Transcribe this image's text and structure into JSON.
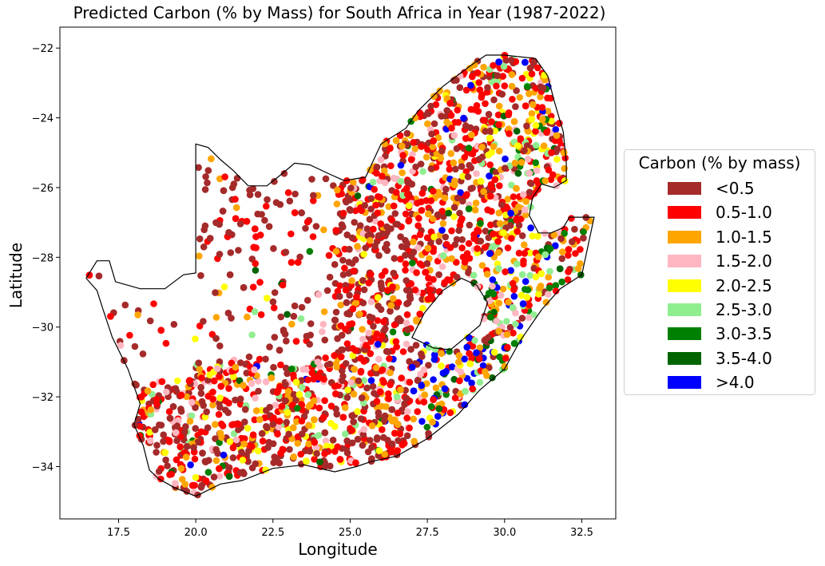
{
  "chart_data": {
    "type": "scatter",
    "title": "Predicted Carbon (% by Mass) for South Africa in Year (1987-2022)",
    "xlabel": "Longitude",
    "ylabel": "Latitude",
    "xlim": [
      15.6,
      33.6
    ],
    "ylim": [
      -35.5,
      -21.4
    ],
    "xticks": [
      17.5,
      20.0,
      22.5,
      25.0,
      27.5,
      30.0,
      32.5
    ],
    "xtick_labels": [
      "17.5",
      "20.0",
      "22.5",
      "25.0",
      "27.5",
      "30.0",
      "32.5"
    ],
    "yticks": [
      -22,
      -24,
      -26,
      -28,
      -30,
      -32,
      -34
    ],
    "ytick_labels": [
      "−22",
      "−24",
      "−26",
      "−28",
      "−30",
      "−32",
      "−34"
    ],
    "grid": false,
    "legend_position": "right",
    "legend": {
      "title": "Carbon (% by mass)",
      "entries": [
        {
          "label": "<0.5",
          "color": "#a52a2a"
        },
        {
          "label": "0.5-1.0",
          "color": "#ff0000"
        },
        {
          "label": "1.0-1.5",
          "color": "#ffa500"
        },
        {
          "label": "1.5-2.0",
          "color": "#ffb6c1"
        },
        {
          "label": "2.0-2.5",
          "color": "#ffff00"
        },
        {
          "label": "2.5-3.0",
          "color": "#90ee90"
        },
        {
          "label": "3.0-3.5",
          "color": "#008000"
        },
        {
          "label": "3.5-4.0",
          "color": "#006400"
        },
        {
          "label": ">4.0",
          "color": "#0000ff"
        }
      ]
    },
    "boundary_south_africa": [
      [
        16.45,
        -28.6
      ],
      [
        16.8,
        -28.1
      ],
      [
        17.2,
        -28.1
      ],
      [
        17.4,
        -28.7
      ],
      [
        18.2,
        -28.9
      ],
      [
        19.0,
        -28.9
      ],
      [
        19.6,
        -28.5
      ],
      [
        20.0,
        -28.45
      ],
      [
        20.0,
        -24.75
      ],
      [
        20.4,
        -24.85
      ],
      [
        20.8,
        -25.2
      ],
      [
        21.2,
        -25.5
      ],
      [
        21.7,
        -25.95
      ],
      [
        22.3,
        -25.95
      ],
      [
        22.8,
        -25.6
      ],
      [
        23.2,
        -25.3
      ],
      [
        23.7,
        -25.35
      ],
      [
        24.3,
        -25.6
      ],
      [
        24.8,
        -25.8
      ],
      [
        25.5,
        -25.7
      ],
      [
        26.0,
        -24.75
      ],
      [
        26.8,
        -24.3
      ],
      [
        27.2,
        -23.8
      ],
      [
        28.0,
        -23.1
      ],
      [
        28.9,
        -22.5
      ],
      [
        29.4,
        -22.2
      ],
      [
        30.0,
        -22.2
      ],
      [
        31.0,
        -22.3
      ],
      [
        31.4,
        -22.8
      ],
      [
        31.6,
        -23.5
      ],
      [
        31.9,
        -24.4
      ],
      [
        32.0,
        -25.3
      ],
      [
        32.0,
        -25.8
      ],
      [
        31.6,
        -26.0
      ],
      [
        31.2,
        -25.9
      ],
      [
        30.9,
        -26.3
      ],
      [
        30.8,
        -26.8
      ],
      [
        31.1,
        -27.3
      ],
      [
        31.5,
        -27.3
      ],
      [
        31.9,
        -27.15
      ],
      [
        32.1,
        -26.85
      ],
      [
        32.9,
        -26.85
      ],
      [
        32.5,
        -28.5
      ],
      [
        31.8,
        -28.9
      ],
      [
        31.2,
        -29.5
      ],
      [
        30.5,
        -30.4
      ],
      [
        30.0,
        -31.2
      ],
      [
        29.2,
        -31.8
      ],
      [
        28.5,
        -32.5
      ],
      [
        27.5,
        -33.2
      ],
      [
        26.5,
        -33.7
      ],
      [
        25.7,
        -33.85
      ],
      [
        25.2,
        -34.0
      ],
      [
        24.5,
        -34.15
      ],
      [
        23.5,
        -33.95
      ],
      [
        22.5,
        -34.05
      ],
      [
        21.5,
        -34.4
      ],
      [
        20.8,
        -34.5
      ],
      [
        20.0,
        -34.85
      ],
      [
        19.3,
        -34.6
      ],
      [
        18.8,
        -34.35
      ],
      [
        18.5,
        -34.1
      ],
      [
        18.3,
        -33.4
      ],
      [
        18.0,
        -32.8
      ],
      [
        18.2,
        -32.2
      ],
      [
        17.8,
        -31.2
      ],
      [
        17.3,
        -30.3
      ],
      [
        17.0,
        -29.5
      ],
      [
        16.8,
        -28.95
      ],
      [
        16.45,
        -28.6
      ]
    ],
    "boundary_lesotho": [
      [
        27.0,
        -30.3
      ],
      [
        27.4,
        -29.6
      ],
      [
        28.0,
        -28.95
      ],
      [
        28.6,
        -28.6
      ],
      [
        29.1,
        -28.8
      ],
      [
        29.45,
        -29.3
      ],
      [
        29.2,
        -29.95
      ],
      [
        28.8,
        -30.25
      ],
      [
        28.25,
        -30.65
      ],
      [
        27.7,
        -30.6
      ],
      [
        27.0,
        -30.3
      ]
    ]
  }
}
